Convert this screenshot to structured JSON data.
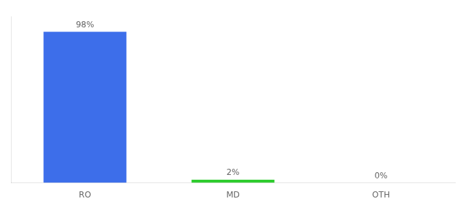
{
  "chart_data": {
    "type": "bar",
    "categories": [
      "RO",
      "MD",
      "OTH"
    ],
    "values": [
      98,
      2,
      0
    ],
    "value_labels": [
      "98%",
      "2%",
      "0%"
    ],
    "colors": [
      "#3d6eea",
      "#2ecc2e",
      "#3d6eea"
    ],
    "ylim": [
      0,
      108
    ],
    "grid": false,
    "data_labels": true,
    "tick_labels": "x"
  }
}
